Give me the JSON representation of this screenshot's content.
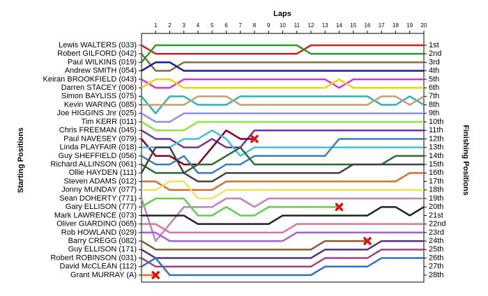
{
  "chart_data": {
    "type": "lap",
    "title": "Laps",
    "y_label_left": "Starting Positions",
    "y_label_right": "Finishing Positions",
    "x": [
      0,
      1,
      2,
      3,
      4,
      5,
      6,
      7,
      8,
      9,
      10,
      11,
      12,
      13,
      14,
      15,
      16,
      17,
      18,
      19,
      20
    ],
    "xlim": [
      0,
      20
    ],
    "xticks": [
      1,
      2,
      3,
      4,
      5,
      6,
      7,
      8,
      9,
      10,
      11,
      12,
      13,
      14,
      15,
      16,
      17,
      18,
      19,
      20
    ],
    "ylim": [
      1,
      28
    ],
    "finishing_positions": [
      "1st",
      "2nd",
      "3rd",
      "4th",
      "5th",
      "6th",
      "7th",
      "8th",
      "9th",
      "10th",
      "11th",
      "12th",
      "13th",
      "14th",
      "15th",
      "16th",
      "17th",
      "18th",
      "19th",
      "20th",
      "21st",
      "22nd",
      "23rd",
      "24th",
      "25th",
      "26th",
      "27th",
      "28th"
    ],
    "series": [
      {
        "name": "Lewis WALTERS (033)",
        "color": "#cc2222",
        "values": [
          1,
          2,
          2,
          2,
          2,
          2,
          2,
          2,
          2,
          2,
          2,
          2,
          1,
          1,
          1,
          1,
          1,
          1,
          1,
          1,
          1
        ]
      },
      {
        "name": "Robert GILFORD (042)",
        "color": "#8b6a3a",
        "values": [
          2,
          4,
          4,
          3,
          3,
          3,
          3,
          3,
          3,
          3,
          3,
          3,
          3,
          3,
          3,
          3,
          3,
          3,
          3,
          3,
          3
        ]
      },
      {
        "name": "Paul WILKINS (019)",
        "color": "#2a9a2a",
        "values": [
          3,
          1,
          1,
          1,
          1,
          1,
          1,
          1,
          1,
          1,
          1,
          1,
          2,
          2,
          2,
          2,
          2,
          2,
          2,
          2,
          2
        ]
      },
      {
        "name": "Andrew SMITH (054)",
        "color": "#1a1aa0",
        "values": [
          4,
          3,
          3,
          4,
          4,
          4,
          4,
          4,
          4,
          4,
          4,
          4,
          4,
          4,
          4,
          4,
          4,
          4,
          4,
          4,
          4
        ]
      },
      {
        "name": "Keiran BROOKFIELD (043)",
        "color": "#e030d0",
        "values": [
          5,
          6,
          6,
          5,
          5,
          5,
          5,
          5,
          5,
          5,
          5,
          5,
          5,
          5,
          6,
          5,
          5,
          5,
          5,
          5,
          5
        ]
      },
      {
        "name": "Darren STACEY (006)",
        "color": "#e6d800",
        "values": [
          6,
          5,
          5,
          6,
          6,
          6,
          6,
          6,
          6,
          6,
          6,
          6,
          6,
          6,
          5,
          6,
          6,
          6,
          6,
          6,
          6
        ]
      },
      {
        "name": "Simon BAYLISS (075)",
        "color": "#30b0b0",
        "values": [
          7,
          9,
          7,
          7,
          8,
          8,
          8,
          7,
          7,
          7,
          7,
          7,
          7,
          7,
          7,
          7,
          7,
          8,
          8,
          7,
          8
        ]
      },
      {
        "name": "Kevin WARING (085)",
        "color": "#c0a070",
        "values": [
          8,
          8,
          8,
          8,
          7,
          7,
          7,
          8,
          8,
          8,
          8,
          8,
          8,
          8,
          8,
          8,
          8,
          7,
          7,
          8,
          7
        ]
      },
      {
        "name": "Joe HIGGINS Jnr (025)",
        "color": "#9090e0",
        "values": [
          9,
          10,
          10,
          9,
          9,
          9,
          9,
          9,
          9,
          9,
          9,
          9,
          9,
          9,
          9,
          9,
          9,
          9,
          9,
          9,
          9
        ]
      },
      {
        "name": "Tim KERR (011)",
        "color": "#90e040",
        "values": [
          10,
          11,
          11,
          11,
          10,
          10,
          10,
          10,
          10,
          10,
          10,
          10,
          10,
          10,
          10,
          10,
          10,
          10,
          10,
          10,
          10
        ]
      },
      {
        "name": "Chris FREEMAN (045)",
        "color": "#7030a0",
        "values": [
          11,
          12,
          12,
          13,
          13,
          12,
          13,
          13,
          11,
          11,
          11,
          11,
          11,
          11,
          11,
          11,
          11,
          11,
          11,
          11,
          11
        ]
      },
      {
        "name": "Paul NAVESEY (079)",
        "color": "#800020",
        "values": [
          12,
          14,
          14,
          15,
          15,
          13,
          11,
          12,
          12,
          null,
          null,
          null,
          null,
          null,
          null,
          null,
          null,
          null,
          null,
          null,
          null
        ]
      },
      {
        "name": "Linda PLAYFAIR (018)",
        "color": "#40c0e0",
        "values": [
          13,
          13,
          13,
          12,
          12,
          11,
          12,
          14,
          13,
          13,
          13,
          13,
          13,
          13,
          13,
          13,
          13,
          13,
          13,
          13,
          13
        ]
      },
      {
        "name": "Guy SHEFFIELD (056)",
        "color": "#3a7ac0",
        "values": [
          14,
          15,
          15,
          14,
          16,
          16,
          15,
          15,
          14,
          14,
          14,
          14,
          14,
          14,
          12,
          12,
          12,
          12,
          12,
          12,
          12
        ]
      },
      {
        "name": "Richard ALLINSON (061)",
        "color": "#2a6a2a",
        "values": [
          15,
          16,
          16,
          16,
          15,
          15,
          14,
          13,
          15,
          15,
          15,
          15,
          15,
          15,
          15,
          15,
          15,
          15,
          14,
          14,
          14
        ]
      },
      {
        "name": "Ollie HAYDEN (111)",
        "color": "#404040",
        "values": [
          16,
          13,
          13,
          16,
          17,
          17,
          16,
          16,
          16,
          16,
          16,
          16,
          16,
          16,
          16,
          15,
          15,
          15,
          15,
          15,
          15
        ]
      },
      {
        "name": "Steven ADAMS (012)",
        "color": "#d07030",
        "values": [
          17,
          17,
          18,
          18,
          18,
          18,
          17,
          17,
          17,
          17,
          17,
          17,
          17,
          17,
          17,
          17,
          17,
          17,
          17,
          16,
          16
        ]
      },
      {
        "name": "Jonny MUNDAY (077)",
        "color": "#f0e060",
        "values": [
          18,
          18,
          17,
          17,
          19,
          19,
          18,
          18,
          18,
          18,
          18,
          18,
          18,
          18,
          18,
          18,
          18,
          18,
          18,
          18,
          18
        ]
      },
      {
        "name": "Sean DOHERTY (771)",
        "color": "#c080c0",
        "values": [
          19,
          24,
          22,
          20,
          20,
          20,
          19,
          19,
          20,
          19,
          19,
          19,
          19,
          19,
          19,
          19,
          19,
          19,
          19,
          19,
          19
        ]
      },
      {
        "name": "Gary ELLISON (777)",
        "color": "#60d040",
        "values": [
          20,
          19,
          19,
          19,
          21,
          21,
          20,
          21,
          21,
          20,
          20,
          20,
          20,
          20,
          20,
          null,
          null,
          null,
          null,
          null,
          null
        ]
      },
      {
        "name": "Mark LAWRENCE (073)",
        "color": "#202020",
        "values": [
          21,
          21,
          21,
          21,
          22,
          22,
          22,
          22,
          22,
          22,
          21,
          21,
          21,
          21,
          21,
          21,
          21,
          20,
          20,
          21,
          20
        ]
      },
      {
        "name": "Oliver GIARDINO (065)",
        "color": "#e070a0",
        "values": [
          22,
          22,
          23,
          23,
          23,
          23,
          23,
          23,
          23,
          23,
          23,
          22,
          22,
          22,
          22,
          22,
          22,
          22,
          22,
          22,
          22
        ]
      },
      {
        "name": "Rob HOWLAND (029)",
        "color": "#a060e0",
        "values": [
          23,
          23,
          24,
          24,
          24,
          24,
          24,
          24,
          24,
          24,
          24,
          23,
          23,
          23,
          23,
          23,
          23,
          23,
          23,
          23,
          23
        ]
      },
      {
        "name": "Barry CREGG (082)",
        "color": "#8a5a2a",
        "values": [
          24,
          25,
          25,
          25,
          25,
          25,
          25,
          25,
          25,
          25,
          25,
          25,
          25,
          24,
          24,
          24,
          24,
          null,
          null,
          null,
          null
        ]
      },
      {
        "name": "Guy ELLISON (171)",
        "color": "#503080",
        "values": [
          25,
          26,
          26,
          26,
          26,
          26,
          26,
          26,
          26,
          26,
          26,
          26,
          26,
          25,
          25,
          25,
          25,
          24,
          24,
          24,
          24
        ]
      },
      {
        "name": "Robert ROBINSON (031)",
        "color": "#a04080",
        "values": [
          26,
          27,
          27,
          27,
          27,
          27,
          27,
          27,
          27,
          27,
          27,
          27,
          27,
          26,
          26,
          26,
          26,
          25,
          25,
          25,
          25
        ]
      },
      {
        "name": "David McCLEAN (112)",
        "color": "#3070c0",
        "values": [
          27,
          26,
          28,
          28,
          28,
          28,
          28,
          28,
          28,
          28,
          28,
          28,
          28,
          27,
          27,
          27,
          27,
          26,
          26,
          26,
          26
        ]
      },
      {
        "name": "Grant MURRAY (A)",
        "color": "#e07020",
        "values": [
          28,
          28,
          null,
          null,
          null,
          null,
          null,
          null,
          null,
          null,
          null,
          null,
          null,
          null,
          null,
          null,
          null,
          null,
          null,
          null,
          null
        ]
      }
    ],
    "retirements": {
      "x": [
        1,
        8,
        14,
        16
      ],
      "y": [
        28,
        12,
        20,
        24
      ]
    }
  }
}
